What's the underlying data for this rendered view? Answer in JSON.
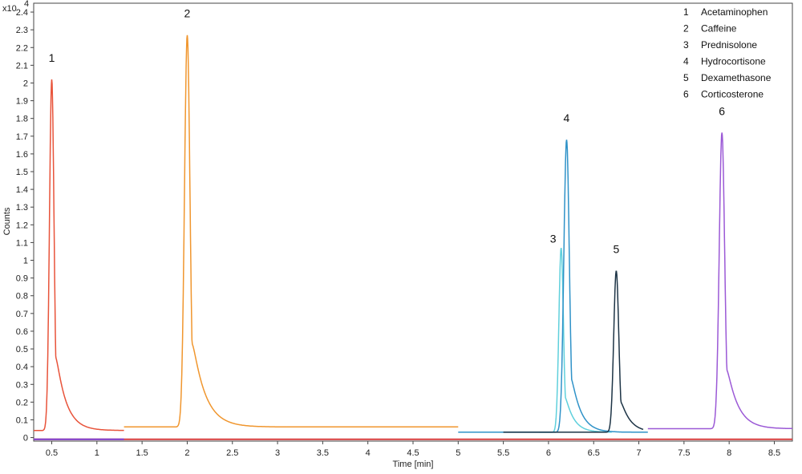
{
  "chart_data": {
    "type": "line",
    "title": "",
    "xlabel": "Time [min]",
    "ylabel": "Counts",
    "y_multiplier": "x10",
    "y_exponent": "4",
    "xlim": [
      0.3,
      8.7
    ],
    "ylim": [
      -0.02,
      2.45
    ],
    "x_ticks": [
      0.5,
      1,
      1.5,
      2,
      2.5,
      3,
      3.5,
      4,
      4.5,
      5,
      5.5,
      6,
      6.5,
      7,
      7.5,
      8,
      8.5
    ],
    "x_tick_labels": [
      "0.5",
      "1",
      "1.5",
      "2",
      "2.5",
      "3",
      "3.5",
      "4",
      "4.5",
      "5",
      "5.5",
      "6",
      "6.5",
      "7",
      "7.5",
      "8",
      "8.5"
    ],
    "y_ticks": [
      0,
      0.1,
      0.2,
      0.3,
      0.4,
      0.5,
      0.6,
      0.7,
      0.8,
      0.9,
      1,
      1.1,
      1.2,
      1.3,
      1.4,
      1.5,
      1.6,
      1.7,
      1.8,
      1.9,
      2,
      2.1,
      2.2,
      2.3,
      2.4
    ],
    "y_tick_labels": [
      "0",
      "0.1",
      "0.2",
      "0.3",
      "0.4",
      "0.5",
      "0.6",
      "0.7",
      "0.8",
      "0.9",
      "1",
      "1.1",
      "1.2",
      "1.3",
      "1.4",
      "1.5",
      "1.6",
      "1.7",
      "1.8",
      "1.9",
      "2",
      "2.1",
      "2.2",
      "2.3",
      "2.4"
    ],
    "grid": false,
    "legend_position": "top-right",
    "legend": [
      {
        "num": "1",
        "name": "Acetaminophen"
      },
      {
        "num": "2",
        "name": "Caffeine"
      },
      {
        "num": "3",
        "name": "Prednisolone"
      },
      {
        "num": "4",
        "name": "Hydrocortisone"
      },
      {
        "num": "5",
        "name": "Dexamethasone"
      },
      {
        "num": "6",
        "name": "Corticosterone"
      }
    ],
    "series": [
      {
        "label": "1",
        "color": "#e8533a",
        "x_start": 0.3,
        "x_end": 1.3,
        "baseline": 0.04,
        "peak_x": 0.5,
        "peak_y": 2.02,
        "sigma": 0.025,
        "tail": 0.11,
        "label_y": 2.12
      },
      {
        "label": "2",
        "color": "#f0962e",
        "x_start": 1.3,
        "x_end": 5.0,
        "baseline": 0.06,
        "peak_x": 2.0,
        "peak_y": 2.27,
        "sigma": 0.03,
        "tail": 0.14,
        "label_y": 2.37
      },
      {
        "label": "3",
        "color": "#5fd0dc",
        "x_start": 5.9,
        "x_end": 6.7,
        "baseline": 0.03,
        "peak_x": 6.14,
        "peak_y": 1.07,
        "sigma": 0.025,
        "tail": 0.09,
        "label_y": 1.1
      },
      {
        "label": "4",
        "color": "#2f92c8",
        "x_start": 5.0,
        "x_end": 7.1,
        "baseline": 0.03,
        "peak_x": 6.2,
        "peak_y": 1.68,
        "sigma": 0.03,
        "tail": 0.1,
        "label_y": 1.78
      },
      {
        "label": "5",
        "color": "#1d3446",
        "x_start": 5.5,
        "x_end": 7.05,
        "baseline": 0.03,
        "peak_x": 6.75,
        "peak_y": 0.94,
        "sigma": 0.028,
        "tail": 0.1,
        "label_y": 1.04
      },
      {
        "label": "6",
        "color": "#9b59d6",
        "x_start": 7.1,
        "x_end": 8.7,
        "baseline": 0.05,
        "peak_x": 7.92,
        "peak_y": 1.72,
        "sigma": 0.03,
        "tail": 0.12,
        "label_y": 1.82
      }
    ],
    "baseline_line": {
      "color": "#d63b3b",
      "y": -0.01
    },
    "low_line": {
      "color": "#7b3fd0",
      "x_start": 0.3,
      "x_end": 1.3,
      "y": -0.01
    }
  }
}
